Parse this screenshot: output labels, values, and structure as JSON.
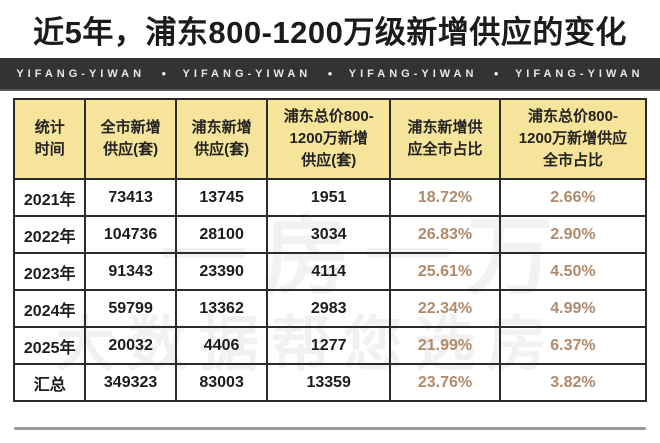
{
  "page": {
    "title": "近5年，浦东800-1200万级新增供应的变化"
  },
  "banner": {
    "items": [
      "YIFANG-YIWAN",
      "YIFANG-YIWAN",
      "YIFANG-YIWAN",
      "YIFANG-YIWAN"
    ],
    "separator": "●"
  },
  "watermarks": {
    "upper": "一房一万",
    "lower": "大数据帮您选房"
  },
  "colors": {
    "header_bg": "#F7E49B",
    "banner_bg": "#333333",
    "banner_text": "#E8E8E8",
    "percent_text": "#B08A6B",
    "border": "#2B2B2B",
    "divider": "#999999",
    "title_text": "#1B1B1B"
  },
  "table": {
    "headers": [
      "统计\n时间",
      "全市新增\n供应(套)",
      "浦东新增\n供应(套)",
      "浦东总价800-\n1200万新增\n供应(套)",
      "浦东新增供\n应全市占比",
      "浦东总价800-\n1200万新增供应\n全市占比"
    ],
    "rows": [
      {
        "cells": [
          "2021年",
          "73413",
          "13745",
          "1951",
          "18.72%",
          "2.66%"
        ]
      },
      {
        "cells": [
          "2022年",
          "104736",
          "28100",
          "3034",
          "26.83%",
          "2.90%"
        ]
      },
      {
        "cells": [
          "2023年",
          "91343",
          "23390",
          "4114",
          "25.61%",
          "4.50%"
        ]
      },
      {
        "cells": [
          "2024年",
          "59799",
          "13362",
          "2983",
          "22.34%",
          "4.99%"
        ]
      },
      {
        "cells": [
          "2025年",
          "20032",
          "4406",
          "1277",
          "21.99%",
          "6.37%"
        ]
      },
      {
        "cells": [
          "汇总",
          "349323",
          "83003",
          "13359",
          "23.76%",
          "3.82%"
        ]
      }
    ]
  },
  "chart_data": {
    "type": "table",
    "title": "近5年，浦东800-1200万级新增供应的变化",
    "columns": [
      "统计时间",
      "全市新增供应(套)",
      "浦东新增供应(套)",
      "浦东总价800-1200万新增供应(套)",
      "浦东新增供应全市占比",
      "浦东总价800-1200万新增供应全市占比"
    ],
    "rows": [
      [
        "2021年",
        73413,
        13745,
        1951,
        "18.72%",
        "2.66%"
      ],
      [
        "2022年",
        104736,
        28100,
        3034,
        "26.83%",
        "2.90%"
      ],
      [
        "2023年",
        91343,
        23390,
        4114,
        "25.61%",
        "4.50%"
      ],
      [
        "2024年",
        59799,
        13362,
        2983,
        "22.34%",
        "4.99%"
      ],
      [
        "2025年",
        20032,
        4406,
        1277,
        "21.99%",
        "6.37%"
      ],
      [
        "汇总",
        349323,
        83003,
        13359,
        "23.76%",
        "3.82%"
      ]
    ]
  }
}
